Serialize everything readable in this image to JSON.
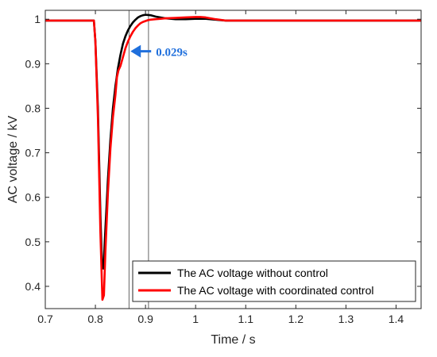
{
  "chart_data": {
    "type": "line",
    "title": "",
    "xlabel": "Time / s",
    "ylabel": "AC voltage / kV",
    "xlim": [
      0.7,
      1.45
    ],
    "ylim": [
      0.35,
      1.02
    ],
    "x_ticks": [
      0.7,
      0.8,
      0.9,
      1.0,
      1.1,
      1.2,
      1.3,
      1.4
    ],
    "x_tick_labels": [
      "0.7",
      "0.8",
      "0.9",
      "1",
      "1.1",
      "1.2",
      "1.3",
      "1.4"
    ],
    "y_ticks": [
      0.4,
      0.5,
      0.6,
      0.7,
      0.8,
      0.9,
      1.0
    ],
    "y_tick_labels": [
      "0.4",
      "0.5",
      "0.6",
      "0.7",
      "0.8",
      "0.9",
      "1"
    ],
    "grid": false,
    "legend_position": "bottom-right",
    "series": [
      {
        "name": "The AC voltage without control",
        "color": "#000000",
        "x": [
          0.7,
          0.797,
          0.8,
          0.805,
          0.81,
          0.813,
          0.816,
          0.82,
          0.825,
          0.83,
          0.835,
          0.84,
          0.845,
          0.85,
          0.855,
          0.86,
          0.865,
          0.87,
          0.875,
          0.88,
          0.885,
          0.89,
          0.895,
          0.9,
          0.91,
          0.92,
          0.94,
          0.96,
          0.98,
          1.0,
          1.02,
          1.04,
          1.06,
          1.08,
          1.1,
          1.45
        ],
        "y": [
          0.997,
          0.997,
          0.95,
          0.8,
          0.56,
          0.45,
          0.44,
          0.53,
          0.64,
          0.73,
          0.8,
          0.85,
          0.89,
          0.92,
          0.945,
          0.962,
          0.975,
          0.985,
          0.993,
          0.999,
          1.004,
          1.007,
          1.009,
          1.01,
          1.009,
          1.006,
          1.002,
          1.0,
          1.0,
          1.001,
          1.001,
          0.999,
          0.997,
          0.997,
          0.997,
          0.997
        ]
      },
      {
        "name": "The AC voltage with coordinated control",
        "color": "#ff0000",
        "x": [
          0.7,
          0.797,
          0.8,
          0.805,
          0.81,
          0.814,
          0.817,
          0.82,
          0.825,
          0.83,
          0.835,
          0.84,
          0.843,
          0.846,
          0.85,
          0.855,
          0.86,
          0.865,
          0.87,
          0.875,
          0.88,
          0.885,
          0.89,
          0.895,
          0.9,
          0.905,
          0.91,
          0.92,
          0.93,
          0.94,
          0.96,
          0.98,
          1.0,
          1.01,
          1.02,
          1.04,
          1.06,
          1.08,
          1.1,
          1.45
        ],
        "y": [
          0.997,
          0.997,
          0.95,
          0.78,
          0.52,
          0.37,
          0.38,
          0.48,
          0.61,
          0.71,
          0.78,
          0.83,
          0.87,
          0.885,
          0.895,
          0.915,
          0.935,
          0.95,
          0.962,
          0.972,
          0.98,
          0.986,
          0.991,
          0.994,
          0.996,
          0.998,
          0.999,
          1.0,
          1.001,
          1.002,
          1.003,
          1.004,
          1.005,
          1.005,
          1.004,
          1.0,
          0.997,
          0.997,
          0.997,
          0.997
        ]
      }
    ],
    "vertical_markers": [
      0.867,
      0.906
    ],
    "annotation": {
      "text": "0.029s",
      "color": "#1f6fdc",
      "x": 0.87,
      "y": 0.928
    }
  }
}
